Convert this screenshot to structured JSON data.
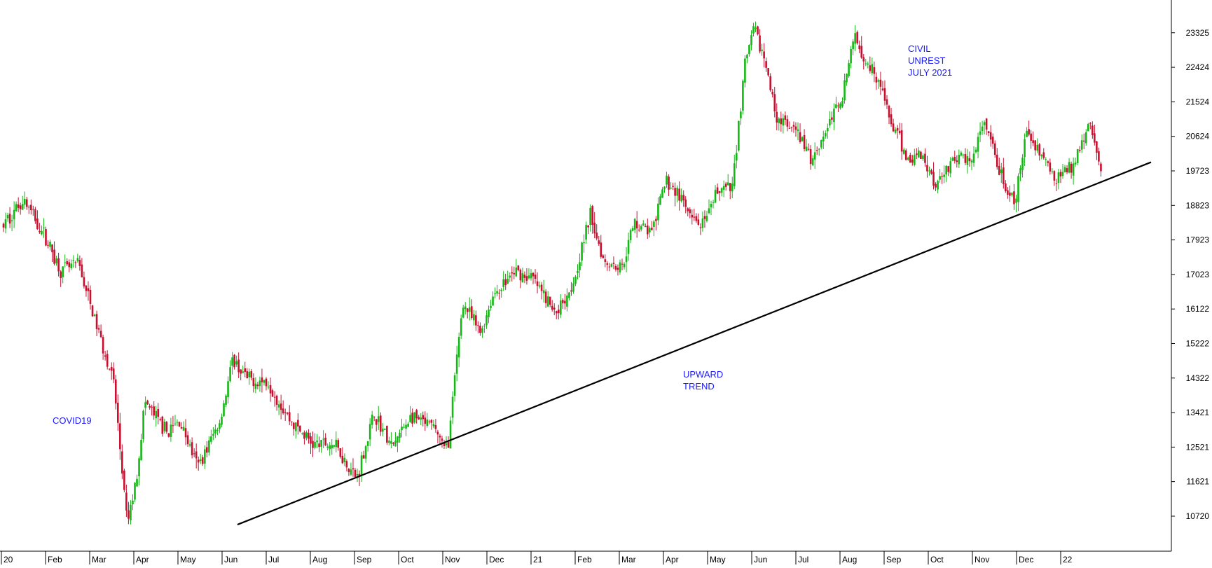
{
  "chart_data": {
    "type": "candlestick",
    "title": "",
    "xlabel": "",
    "ylabel": "",
    "ylim": [
      10000,
      24000
    ],
    "y_ticks": [
      "10720",
      "11621",
      "12521",
      "13421",
      "14322",
      "15222",
      "16122",
      "17023",
      "17923",
      "18823",
      "19723",
      "20624",
      "21524",
      "22424",
      "23325"
    ],
    "x_ticks": [
      "20",
      "Feb",
      "Mar",
      "Apr",
      "May",
      "Jun",
      "Jul",
      "Aug",
      "Sep",
      "Oct",
      "Nov",
      "Dec",
      "21",
      "Feb",
      "Mar",
      "Apr",
      "May",
      "Jun",
      "Jul",
      "Aug",
      "Sep",
      "Oct",
      "Nov",
      "Dec",
      "22"
    ],
    "up_color": "#14b814",
    "down_color": "#c8102e",
    "anchors": [
      {
        "m": 0.0,
        "v": 18300
      },
      {
        "m": 0.45,
        "v": 19000
      },
      {
        "m": 0.95,
        "v": 18000
      },
      {
        "m": 1.3,
        "v": 17100
      },
      {
        "m": 1.7,
        "v": 17300
      },
      {
        "m": 2.0,
        "v": 16100
      },
      {
        "m": 2.5,
        "v": 14200
      },
      {
        "m": 2.8,
        "v": 10500
      },
      {
        "m": 3.0,
        "v": 11600
      },
      {
        "m": 3.2,
        "v": 13700
      },
      {
        "m": 3.7,
        "v": 12900
      },
      {
        "m": 4.0,
        "v": 13200
      },
      {
        "m": 4.4,
        "v": 12000
      },
      {
        "m": 4.9,
        "v": 13200
      },
      {
        "m": 5.2,
        "v": 14800
      },
      {
        "m": 5.5,
        "v": 14300
      },
      {
        "m": 6.0,
        "v": 14200
      },
      {
        "m": 6.5,
        "v": 13200
      },
      {
        "m": 7.0,
        "v": 12600
      },
      {
        "m": 7.5,
        "v": 12600
      },
      {
        "m": 8.0,
        "v": 11700
      },
      {
        "m": 8.4,
        "v": 13400
      },
      {
        "m": 8.8,
        "v": 12500
      },
      {
        "m": 9.2,
        "v": 13300
      },
      {
        "m": 9.8,
        "v": 13000
      },
      {
        "m": 10.0,
        "v": 12400
      },
      {
        "m": 10.1,
        "v": 12800
      },
      {
        "m": 10.2,
        "v": 14000
      },
      {
        "m": 10.4,
        "v": 16300
      },
      {
        "m": 10.8,
        "v": 15500
      },
      {
        "m": 11.1,
        "v": 16500
      },
      {
        "m": 11.6,
        "v": 17100
      },
      {
        "m": 12.0,
        "v": 16900
      },
      {
        "m": 12.5,
        "v": 16000
      },
      {
        "m": 12.9,
        "v": 16800
      },
      {
        "m": 13.3,
        "v": 18600
      },
      {
        "m": 13.6,
        "v": 17400
      },
      {
        "m": 14.0,
        "v": 17200
      },
      {
        "m": 14.3,
        "v": 18400
      },
      {
        "m": 14.7,
        "v": 18100
      },
      {
        "m": 15.0,
        "v": 19500
      },
      {
        "m": 15.3,
        "v": 19100
      },
      {
        "m": 15.6,
        "v": 18400
      },
      {
        "m": 15.9,
        "v": 18300
      },
      {
        "m": 16.2,
        "v": 19300
      },
      {
        "m": 16.5,
        "v": 19200
      },
      {
        "m": 16.8,
        "v": 22500
      },
      {
        "m": 17.0,
        "v": 23400
      },
      {
        "m": 17.2,
        "v": 22800
      },
      {
        "m": 17.5,
        "v": 21200
      },
      {
        "m": 17.8,
        "v": 20800
      },
      {
        "m": 18.0,
        "v": 20700
      },
      {
        "m": 18.3,
        "v": 20000
      },
      {
        "m": 18.6,
        "v": 20700
      },
      {
        "m": 19.0,
        "v": 21700
      },
      {
        "m": 19.3,
        "v": 23300
      },
      {
        "m": 19.5,
        "v": 22700
      },
      {
        "m": 19.8,
        "v": 22200
      },
      {
        "m": 20.1,
        "v": 21000
      },
      {
        "m": 20.5,
        "v": 20000
      },
      {
        "m": 20.8,
        "v": 20200
      },
      {
        "m": 21.1,
        "v": 19400
      },
      {
        "m": 21.5,
        "v": 20000
      },
      {
        "m": 22.0,
        "v": 20100
      },
      {
        "m": 22.2,
        "v": 21000
      },
      {
        "m": 22.6,
        "v": 19600
      },
      {
        "m": 22.9,
        "v": 18800
      },
      {
        "m": 23.2,
        "v": 20800
      },
      {
        "m": 23.5,
        "v": 20200
      },
      {
        "m": 23.8,
        "v": 19500
      },
      {
        "m": 24.2,
        "v": 19800
      },
      {
        "m": 24.4,
        "v": 20400
      },
      {
        "m": 24.6,
        "v": 21000
      },
      {
        "m": 24.75,
        "v": 20200
      },
      {
        "m": 24.9,
        "v": 19500
      }
    ],
    "trendline": {
      "start": {
        "m": 5.3,
        "v": 10500
      },
      "end": {
        "m": 26.0,
        "v": 19950
      }
    },
    "annotations": [
      {
        "text": "COVID19"
      },
      {
        "text": "UPWARD\nTREND"
      },
      {
        "text": "CIVIL\nUNREST\nJULY 2021"
      }
    ]
  },
  "colors": {
    "axis": "#000000",
    "background": "#ffffff",
    "annotation": "#1a1aff",
    "trendline": "#000000"
  }
}
